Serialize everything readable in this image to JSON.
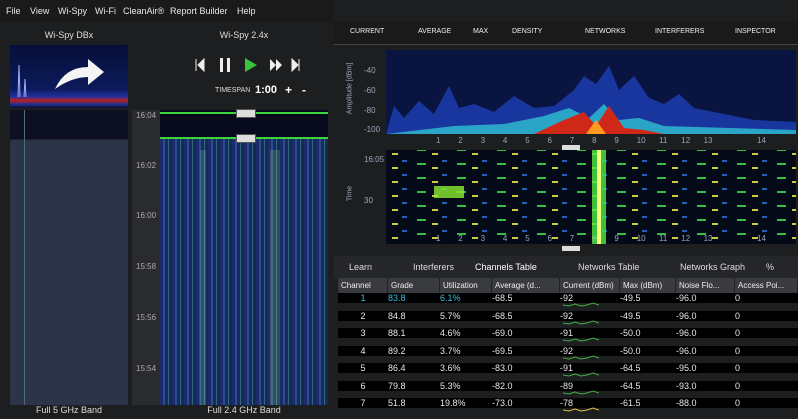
{
  "menu": [
    "File",
    "View",
    "Wi-Spy",
    "Wi-Fi",
    "CleanAir®",
    "Report Builder",
    "Help"
  ],
  "left_panel": {
    "title": "Wi-Spy DBx",
    "footer": "Full 5 GHz Band"
  },
  "middle_panel": {
    "title": "Wi-Spy 2.4x",
    "timespan_label": "TIMESPAN",
    "timespan": "1:00",
    "plus": "+",
    "minus": "-",
    "time_labels": [
      "16:04",
      "16:02",
      "16:00",
      "15:58",
      "15:56",
      "15:54"
    ],
    "footer": "Full 2.4 GHz Band"
  },
  "toolbar": [
    "CURRENT",
    "AVERAGE",
    "MAX",
    "DENSITY",
    "NETWORKS",
    "INTERFERERS",
    "INSPECTOR"
  ],
  "spectrum": {
    "y_axis_label": "Amplitude [dBm]",
    "y_labels": [
      "-40",
      "-60",
      "-80",
      "-100"
    ],
    "channels": [
      "1",
      "2",
      "3",
      "4",
      "5",
      "6",
      "7",
      "8",
      "9",
      "10",
      "11",
      "12",
      "13",
      "14"
    ]
  },
  "waterfall": {
    "y_axis_label": "Time",
    "y_labels": [
      "16:05",
      "30"
    ],
    "channels": [
      "1",
      "2",
      "3",
      "4",
      "5",
      "6",
      "7",
      "8",
      "9",
      "10",
      "11",
      "12",
      "13",
      "14"
    ]
  },
  "tabs": [
    "Learn",
    "Interferers",
    "Channels Table",
    "Networks Table",
    "Networks Graph",
    "%"
  ],
  "table": {
    "columns": [
      "Channel",
      "Grade",
      "Utilization",
      "Average (d...",
      "Current (dBm)",
      "Max (dBm)",
      "Noise Flo...",
      "Access Poi..."
    ],
    "rows": [
      [
        "1",
        "83.8",
        "6.1%",
        "-68.5",
        "-92",
        "-49.5",
        "-96.0",
        "0"
      ],
      [
        "2",
        "84.8",
        "5.7%",
        "-68.5",
        "-92",
        "-49.5",
        "-96.0",
        "0"
      ],
      [
        "3",
        "88.1",
        "4.6%",
        "-69.0",
        "-91",
        "-50.0",
        "-96.0",
        "0"
      ],
      [
        "4",
        "89.2",
        "3.7%",
        "-69.5",
        "-92",
        "-50.0",
        "-96.0",
        "0"
      ],
      [
        "5",
        "86.4",
        "3.6%",
        "-83.0",
        "-91",
        "-64.5",
        "-95.0",
        "0"
      ],
      [
        "6",
        "79.8",
        "5.3%",
        "-82.0",
        "-89",
        "-64.5",
        "-93.0",
        "0"
      ],
      [
        "7",
        "51.8",
        "19.8%",
        "-73.0",
        "-78",
        "-61.5",
        "-88.0",
        "0"
      ]
    ]
  }
}
